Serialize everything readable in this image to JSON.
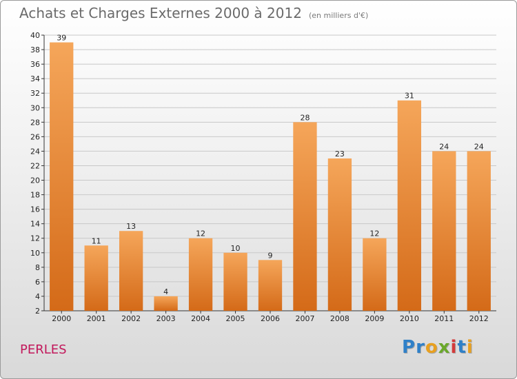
{
  "title": "Achats et Charges Externes 2000 à 2012",
  "unit_note": "(en milliers d'€)",
  "place_name": "PERLES",
  "logo": {
    "text": "Proxiti",
    "letters": [
      "P",
      "r",
      "o",
      "x",
      "i",
      "t",
      "i"
    ],
    "colors": [
      "#2f80c8",
      "#2f80c8",
      "#e8a020",
      "#6aa82a",
      "#d43a3a",
      "#2f80c8",
      "#e8a020"
    ]
  },
  "colors": {
    "bar_light": "#f5a65a",
    "bar_dark": "#d46a18",
    "grid": "#c8c8c8"
  },
  "chart_data": {
    "type": "bar",
    "title": "Achats et Charges Externes 2000 à 2012",
    "categories": [
      "2000",
      "2001",
      "2002",
      "2003",
      "2004",
      "2005",
      "2006",
      "2007",
      "2008",
      "2009",
      "2010",
      "2011",
      "2012"
    ],
    "values": [
      39,
      11,
      13,
      4,
      12,
      10,
      9,
      28,
      23,
      12,
      31,
      24,
      24
    ],
    "ylim": [
      2,
      40
    ],
    "yticks": [
      2,
      4,
      6,
      8,
      10,
      12,
      14,
      16,
      18,
      20,
      22,
      24,
      26,
      28,
      30,
      32,
      34,
      36,
      38,
      40
    ],
    "xlabel": "",
    "ylabel": "",
    "grid": true,
    "data_labels": true
  }
}
